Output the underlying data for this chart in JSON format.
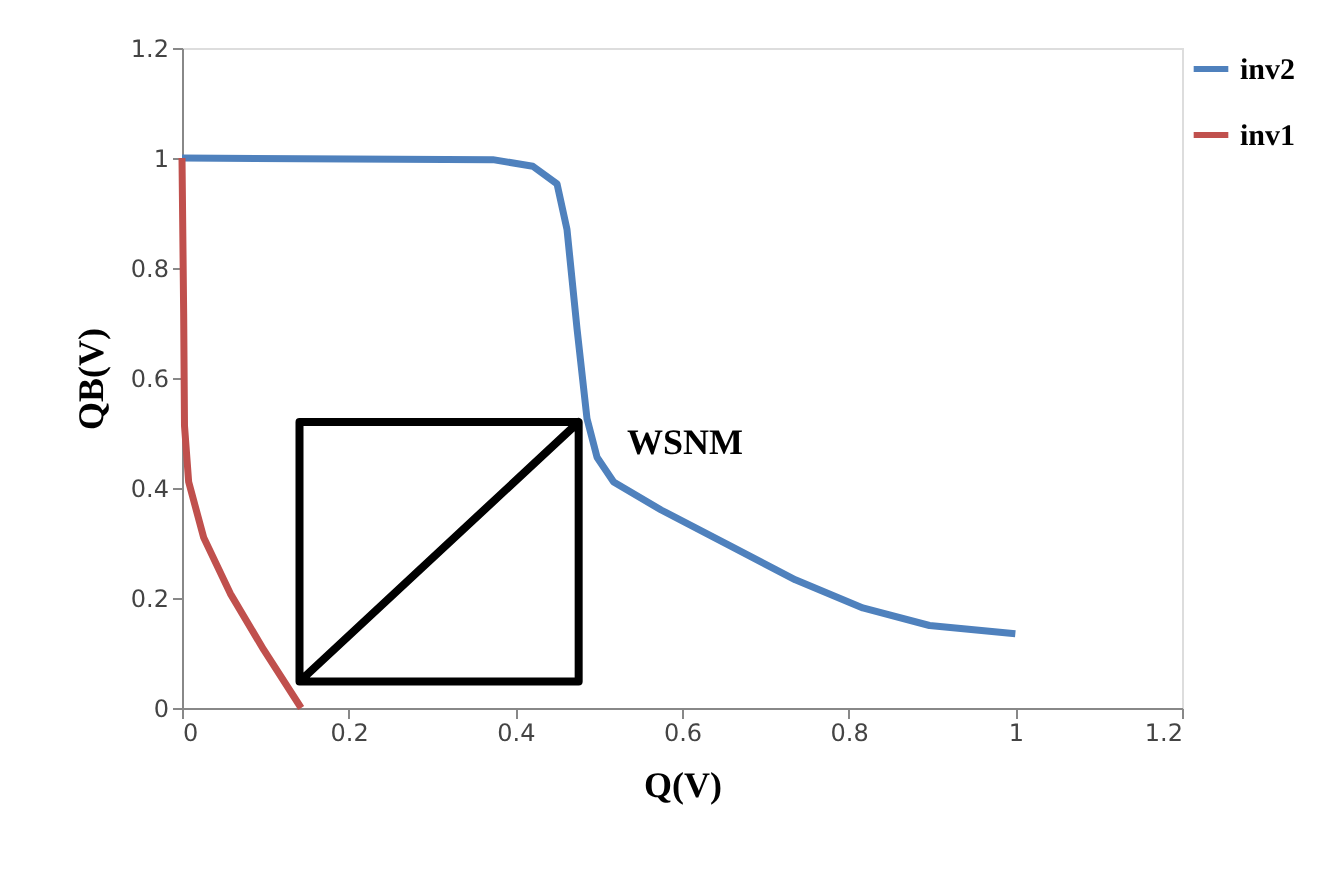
{
  "chart_data": {
    "type": "line",
    "xlabel": "Q(V)",
    "ylabel": "QB(V)",
    "xlim": [
      0,
      1.2
    ],
    "ylim": [
      0,
      1.2
    ],
    "xticks": [
      0,
      0.2,
      0.4,
      0.6,
      0.8,
      1,
      1.2
    ],
    "yticks": [
      0,
      0.2,
      0.4,
      0.6,
      0.8,
      1,
      1.2
    ],
    "grid": false,
    "legend": "right",
    "marker": "none",
    "line_style": "solid",
    "series": [
      {
        "name": "inv2",
        "color": "#4f81bd",
        "x": [
          0,
          0.373,
          0.421,
          0.45,
          0.462,
          0.474,
          0.486,
          0.498,
          0.518,
          0.575,
          0.655,
          0.736,
          0.817,
          0.897,
          1.0
        ],
        "values": [
          1,
          0.997,
          0.985,
          0.953,
          0.87,
          0.69,
          0.526,
          0.456,
          0.411,
          0.36,
          0.297,
          0.233,
          0.182,
          0.15,
          0.135
        ]
      },
      {
        "name": "inv1",
        "color": "#c0504d",
        "x": [
          0,
          0.002,
          0.003,
          0.008,
          0.026,
          0.058,
          0.098,
          0.143
        ],
        "values": [
          1,
          0.717,
          0.513,
          0.411,
          0.31,
          0.208,
          0.106,
          0
        ]
      },
      {
        "color": "#000000",
        "x": [
          0.141,
          0.476,
          0.476,
          0.141,
          0.141,
          0.476
        ],
        "values": [
          0.048,
          0.52,
          0.048,
          0.048,
          0.52,
          0.52
        ]
      }
    ],
    "annotations": [
      "WSNM"
    ]
  }
}
